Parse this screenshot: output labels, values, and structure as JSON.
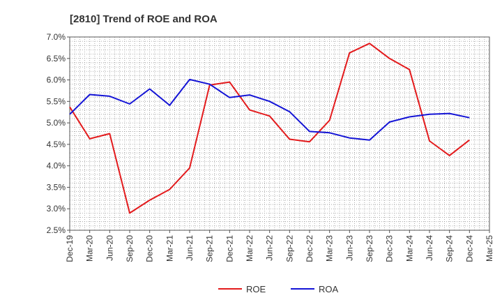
{
  "chart_data": {
    "type": "line",
    "title": "[2810]  Trend of ROE and ROA",
    "xlabel": "",
    "ylabel": "",
    "ylim": [
      2.5,
      7.0
    ],
    "y_ticks": [
      "2.5%",
      "3.0%",
      "3.5%",
      "4.0%",
      "4.5%",
      "5.0%",
      "5.5%",
      "6.0%",
      "6.5%",
      "7.0%"
    ],
    "categories": [
      "Dec-19",
      "Mar-20",
      "Jun-20",
      "Sep-20",
      "Dec-20",
      "Mar-21",
      "Jun-21",
      "Sep-21",
      "Dec-21",
      "Mar-22",
      "Jun-22",
      "Sep-22",
      "Dec-22",
      "Mar-23",
      "Jun-23",
      "Sep-23",
      "Dec-23",
      "Mar-24",
      "Jun-24",
      "Sep-24",
      "Dec-24",
      "Mar-25"
    ],
    "grid": true,
    "legend_position": "bottom-center",
    "series": [
      {
        "name": "ROE",
        "color": "#e31a1c",
        "values": [
          5.37,
          4.63,
          4.75,
          2.9,
          3.2,
          3.45,
          3.95,
          5.88,
          5.95,
          5.3,
          5.16,
          4.62,
          4.56,
          5.06,
          6.63,
          6.85,
          6.5,
          6.24,
          4.58,
          4.24,
          4.6,
          null
        ]
      },
      {
        "name": "ROA",
        "color": "#1414d6",
        "values": [
          5.2,
          5.66,
          5.62,
          5.44,
          5.79,
          5.41,
          6.01,
          5.9,
          5.59,
          5.65,
          5.5,
          5.26,
          4.8,
          4.77,
          4.65,
          4.6,
          5.02,
          5.14,
          5.2,
          5.22,
          5.12,
          null
        ]
      }
    ]
  }
}
